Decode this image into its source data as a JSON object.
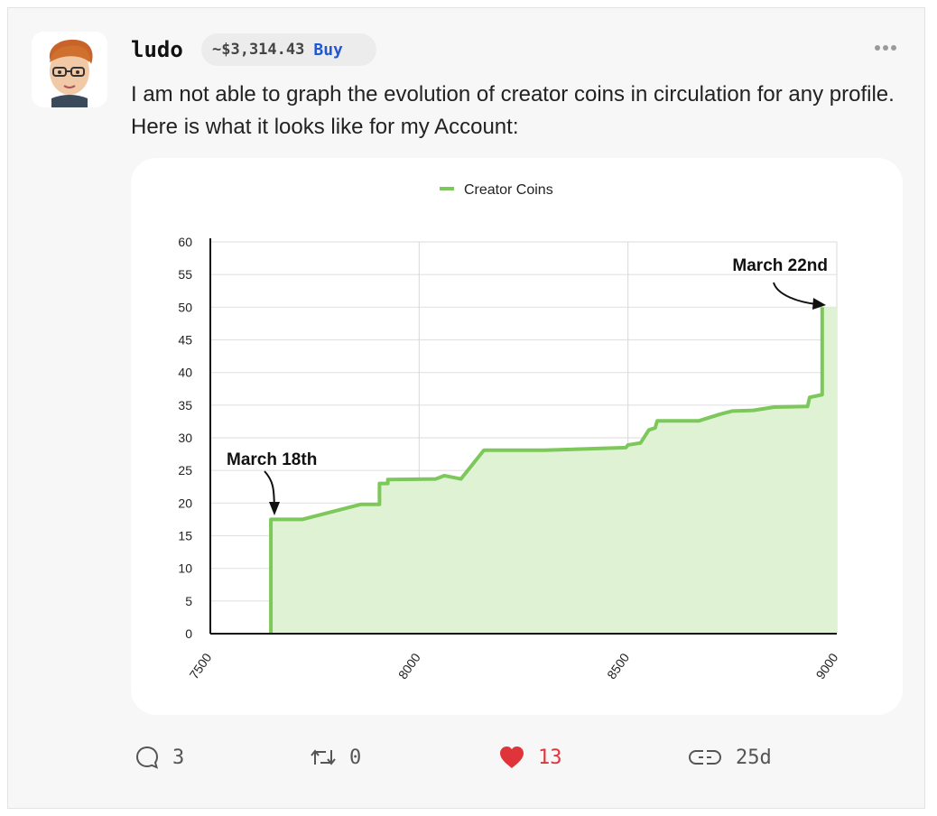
{
  "post": {
    "username": "ludo",
    "price": "~$3,314.43",
    "buy_label": "Buy",
    "text": "I am not able to graph the evolution of creator coins in circulation for any profile. Here is what it looks like for my Account:"
  },
  "chart_data": {
    "type": "area",
    "legend": [
      "Creator Coins"
    ],
    "legend_position": "top-center",
    "series": [
      {
        "name": "Creator Coins",
        "color": "#7dc85a",
        "fill": "#dff3d4",
        "points": [
          [
            7645,
            0
          ],
          [
            7645,
            17.5
          ],
          [
            7720,
            17.5
          ],
          [
            7860,
            19.8
          ],
          [
            7905,
            19.8
          ],
          [
            7905,
            23
          ],
          [
            7925,
            23
          ],
          [
            7925,
            23.6
          ],
          [
            8040,
            23.7
          ],
          [
            8060,
            24.2
          ],
          [
            8100,
            23.7
          ],
          [
            8155,
            28.1
          ],
          [
            8300,
            28.1
          ],
          [
            8495,
            28.5
          ],
          [
            8500,
            28.9
          ],
          [
            8530,
            29.2
          ],
          [
            8550,
            31.2
          ],
          [
            8565,
            31.5
          ],
          [
            8570,
            32.6
          ],
          [
            8670,
            32.6
          ],
          [
            8720,
            33.6
          ],
          [
            8750,
            34.1
          ],
          [
            8800,
            34.2
          ],
          [
            8850,
            34.7
          ],
          [
            8930,
            34.8
          ],
          [
            8935,
            36.2
          ],
          [
            8965,
            36.6
          ],
          [
            8965,
            50
          ]
        ]
      }
    ],
    "x_ticks": [
      "7500",
      "8000",
      "8500",
      "9000"
    ],
    "y_ticks": [
      "0",
      "5",
      "10",
      "15",
      "20",
      "25",
      "30",
      "35",
      "40",
      "45",
      "50",
      "55",
      "60"
    ],
    "xlim": [
      7500,
      9000
    ],
    "ylim": [
      0,
      60
    ],
    "grid": true,
    "annotations": [
      {
        "text": "March 18th"
      },
      {
        "text": "March 22nd"
      }
    ]
  },
  "actions": {
    "comments": "3",
    "reposts": "0",
    "likes": "13",
    "age": "25d"
  },
  "colors": {
    "accent": "#1f57d6",
    "like": "#e0343b",
    "line": "#7dc85a",
    "fill": "#dff3d4"
  }
}
